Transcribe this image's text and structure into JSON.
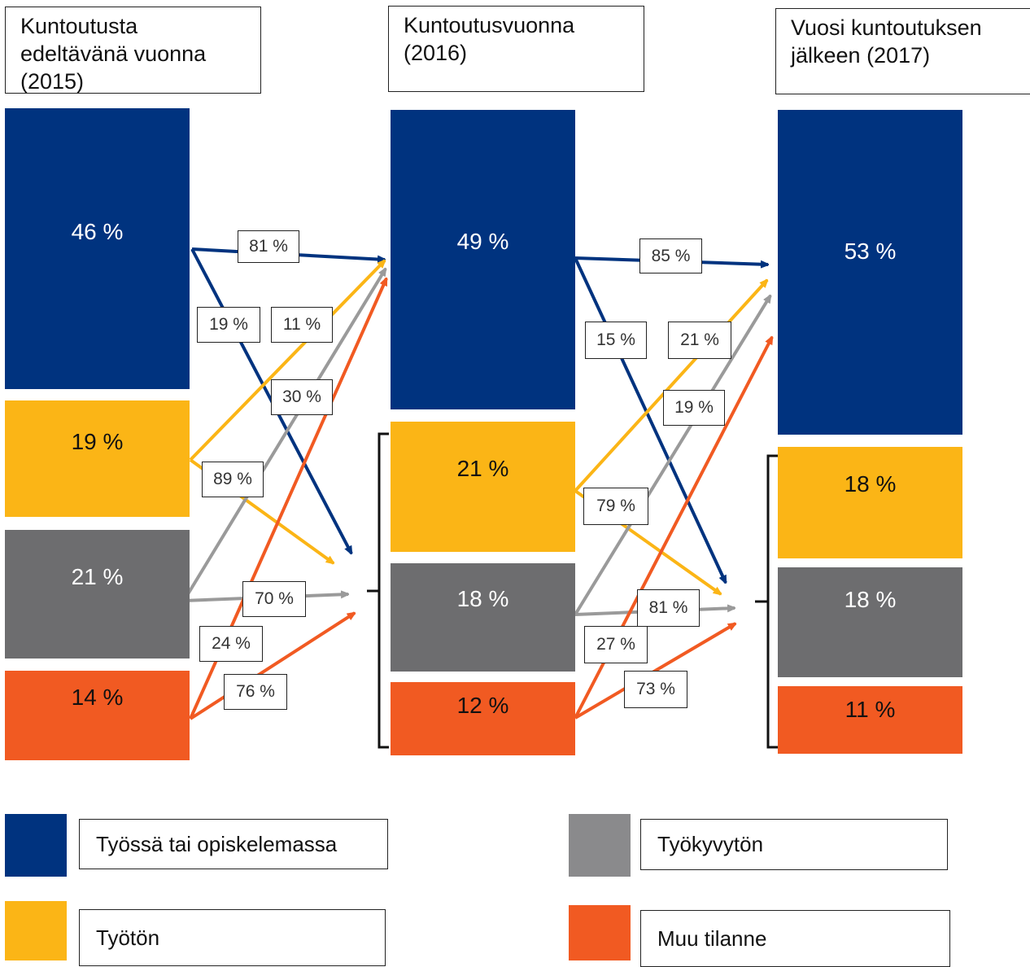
{
  "colors": {
    "work": "#00337F",
    "unemployed": "#FBB516",
    "disabled": "#6D6D6F",
    "disabled_legend": "#8A8A8C",
    "other": "#F15A22",
    "arrow_grey": "#9A9A9A"
  },
  "headers": {
    "y2015": "Kuntoutusta edeltävänä vuonna (2015)",
    "y2016": "Kuntoutusvuonna (2016)",
    "y2017": "Vuosi kuntoutuksen jälkeen (2017)"
  },
  "columns": {
    "y2015": {
      "work": "46 %",
      "unemployed": "19 %",
      "disabled": "21 %",
      "other": "14 %"
    },
    "y2016": {
      "work": "49 %",
      "unemployed": "21 %",
      "disabled": "18 %",
      "other": "12 %"
    },
    "y2017": {
      "work": "53 %",
      "unemployed": "18 %",
      "disabled": "18 %",
      "other": "11 %"
    }
  },
  "transitions": {
    "t1": {
      "work_to_work": "81 %",
      "work_to_nonwork": "19 %",
      "unemployed_to_work": "11 %",
      "unemployed_to_nonwork": "89 %",
      "disabled_to_work": "30 %",
      "disabled_to_nonwork": "70 %",
      "other_to_work": "24 %",
      "other_to_nonwork": "76 %"
    },
    "t2": {
      "work_to_work": "85 %",
      "work_to_nonwork": "15 %",
      "unemployed_to_work": "21 %",
      "unemployed_to_nonwork": "79 %",
      "disabled_to_work": "19 %",
      "disabled_to_nonwork": "81 %",
      "other_to_work": "27 %",
      "other_to_nonwork": "73 %"
    }
  },
  "legend": {
    "work": "Työssä tai opiskelemassa",
    "unemployed": "Työtön",
    "disabled": "Työkyvytön",
    "other": "Muu tilanne"
  }
}
